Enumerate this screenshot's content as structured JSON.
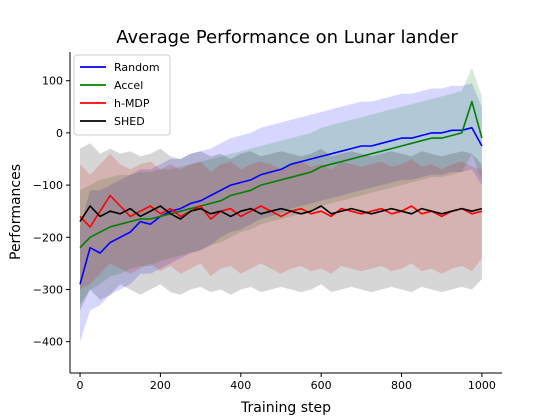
{
  "chart_data": {
    "type": "line",
    "title": "Average Performance on Lunar lander",
    "xlabel": "Training step",
    "ylabel": "Performances",
    "xlim": [
      -25,
      1050
    ],
    "ylim": [
      -460,
      155
    ],
    "xticks": [
      0,
      200,
      400,
      600,
      800,
      1000
    ],
    "yticks": [
      -400,
      -300,
      -200,
      -100,
      0,
      100
    ],
    "xtick_labels": [
      "0",
      "200",
      "400",
      "600",
      "800",
      "1000"
    ],
    "ytick_labels": [
      "−400",
      "−300",
      "−200",
      "−100",
      "0",
      "100"
    ],
    "grid": false,
    "legend_position": "top-left",
    "series": [
      {
        "name": "Random",
        "color": "#0000ff",
        "x": [
          0,
          25,
          50,
          75,
          100,
          125,
          150,
          175,
          200,
          225,
          250,
          275,
          300,
          325,
          350,
          375,
          400,
          425,
          450,
          475,
          500,
          525,
          550,
          575,
          600,
          625,
          650,
          675,
          700,
          725,
          750,
          775,
          800,
          825,
          850,
          875,
          900,
          925,
          950,
          975,
          1000
        ],
        "values": [
          -290,
          -220,
          -230,
          -210,
          -200,
          -190,
          -170,
          -175,
          -160,
          -150,
          -145,
          -135,
          -130,
          -120,
          -110,
          -100,
          -95,
          -90,
          -80,
          -75,
          -70,
          -60,
          -55,
          -50,
          -45,
          -40,
          -35,
          -30,
          -25,
          -25,
          -20,
          -15,
          -10,
          -10,
          -5,
          0,
          0,
          5,
          5,
          10,
          -25
        ],
        "band_low": [
          -400,
          -340,
          -330,
          -310,
          -300,
          -290,
          -270,
          -270,
          -260,
          -250,
          -240,
          -230,
          -225,
          -215,
          -200,
          -190,
          -185,
          -175,
          -165,
          -160,
          -155,
          -145,
          -140,
          -135,
          -130,
          -125,
          -120,
          -115,
          -110,
          -105,
          -100,
          -95,
          -90,
          -90,
          -85,
          -80,
          -80,
          -75,
          -75,
          -70,
          -100
        ],
        "band_high": [
          -180,
          -110,
          -110,
          -100,
          -90,
          -80,
          -70,
          -70,
          -60,
          -50,
          -50,
          -40,
          -35,
          -30,
          -20,
          -10,
          -5,
          0,
          10,
          15,
          20,
          25,
          30,
          35,
          40,
          45,
          50,
          55,
          60,
          60,
          65,
          70,
          75,
          75,
          80,
          85,
          85,
          90,
          90,
          95,
          50
        ]
      },
      {
        "name": "Accel",
        "color": "#008000",
        "x": [
          0,
          25,
          50,
          75,
          100,
          125,
          150,
          175,
          200,
          225,
          250,
          275,
          300,
          325,
          350,
          375,
          400,
          425,
          450,
          475,
          500,
          525,
          550,
          575,
          600,
          625,
          650,
          675,
          700,
          725,
          750,
          775,
          800,
          825,
          850,
          875,
          900,
          925,
          950,
          975,
          1000
        ],
        "values": [
          -220,
          -200,
          -190,
          -180,
          -175,
          -170,
          -165,
          -165,
          -160,
          -155,
          -150,
          -145,
          -140,
          -135,
          -130,
          -120,
          -115,
          -110,
          -100,
          -95,
          -90,
          -85,
          -80,
          -75,
          -65,
          -60,
          -55,
          -50,
          -45,
          -40,
          -35,
          -30,
          -25,
          -20,
          -15,
          -10,
          -10,
          -5,
          0,
          60,
          -10
        ],
        "band_low": [
          -330,
          -300,
          -290,
          -275,
          -270,
          -260,
          -255,
          -255,
          -245,
          -240,
          -235,
          -230,
          -225,
          -215,
          -210,
          -200,
          -190,
          -185,
          -175,
          -170,
          -165,
          -160,
          -155,
          -150,
          -140,
          -135,
          -130,
          -125,
          -120,
          -115,
          -110,
          -105,
          -100,
          -95,
          -90,
          -85,
          -85,
          -80,
          -75,
          -40,
          -90
        ],
        "band_high": [
          -110,
          -100,
          -90,
          -85,
          -80,
          -80,
          -75,
          -75,
          -70,
          -70,
          -65,
          -60,
          -55,
          -50,
          -45,
          -40,
          -35,
          -30,
          -25,
          -20,
          -15,
          -10,
          -5,
          0,
          10,
          15,
          20,
          25,
          30,
          35,
          40,
          45,
          50,
          55,
          60,
          65,
          70,
          75,
          80,
          125,
          70
        ]
      },
      {
        "name": "h-MDP",
        "color": "#ff0000",
        "x": [
          0,
          25,
          50,
          75,
          100,
          125,
          150,
          175,
          200,
          225,
          250,
          275,
          300,
          325,
          350,
          375,
          400,
          425,
          450,
          475,
          500,
          525,
          550,
          575,
          600,
          625,
          650,
          675,
          700,
          725,
          750,
          775,
          800,
          825,
          850,
          875,
          900,
          925,
          950,
          975,
          1000
        ],
        "values": [
          -160,
          -180,
          -150,
          -120,
          -140,
          -160,
          -150,
          -140,
          -155,
          -145,
          -160,
          -150,
          -140,
          -165,
          -150,
          -145,
          -160,
          -150,
          -140,
          -150,
          -160,
          -150,
          -145,
          -155,
          -150,
          -160,
          -145,
          -150,
          -155,
          -150,
          -145,
          -155,
          -150,
          -140,
          -155,
          -150,
          -160,
          -150,
          -145,
          -155,
          -150
        ],
        "band_low": [
          -300,
          -290,
          -270,
          -250,
          -260,
          -270,
          -260,
          -250,
          -265,
          -255,
          -270,
          -260,
          -250,
          -275,
          -260,
          -255,
          -270,
          -260,
          -250,
          -260,
          -270,
          -260,
          -255,
          -265,
          -260,
          -270,
          -255,
          -260,
          -265,
          -260,
          -255,
          -265,
          -260,
          -250,
          -265,
          -260,
          -270,
          -260,
          -255,
          -265,
          -240
        ],
        "band_high": [
          -60,
          -80,
          -60,
          -40,
          -60,
          -70,
          -60,
          -55,
          -70,
          -60,
          -70,
          -60,
          -55,
          -75,
          -60,
          -55,
          -70,
          -60,
          -55,
          -60,
          -70,
          -60,
          -55,
          -65,
          -60,
          -70,
          -55,
          -60,
          -65,
          -60,
          -55,
          -65,
          -60,
          -50,
          -65,
          -60,
          -70,
          -60,
          -55,
          -65,
          -70
        ]
      },
      {
        "name": "SHED",
        "color": "#000000",
        "x": [
          0,
          25,
          50,
          75,
          100,
          125,
          150,
          175,
          200,
          225,
          250,
          275,
          300,
          325,
          350,
          375,
          400,
          425,
          450,
          475,
          500,
          525,
          550,
          575,
          600,
          625,
          650,
          675,
          700,
          725,
          750,
          775,
          800,
          825,
          850,
          875,
          900,
          925,
          950,
          975,
          1000
        ],
        "values": [
          -170,
          -140,
          -160,
          -150,
          -155,
          -145,
          -160,
          -150,
          -140,
          -155,
          -165,
          -150,
          -145,
          -155,
          -150,
          -160,
          -150,
          -145,
          -155,
          -150,
          -145,
          -150,
          -155,
          -150,
          -140,
          -155,
          -150,
          -145,
          -150,
          -155,
          -150,
          -145,
          -150,
          -155,
          -145,
          -150,
          -155,
          -150,
          -145,
          -150,
          -145
        ],
        "band_low": [
          -340,
          -300,
          -320,
          -310,
          -290,
          -300,
          -310,
          -300,
          -290,
          -305,
          -310,
          -300,
          -295,
          -305,
          -300,
          -310,
          -300,
          -295,
          -305,
          -300,
          -295,
          -300,
          -305,
          -300,
          -290,
          -305,
          -300,
          -295,
          -300,
          -305,
          -300,
          -295,
          -300,
          -305,
          -295,
          -300,
          -305,
          -300,
          -295,
          -300,
          -280
        ],
        "band_high": [
          -30,
          -20,
          -40,
          -30,
          -40,
          -35,
          -45,
          -40,
          -30,
          -45,
          -50,
          -40,
          -35,
          -45,
          -40,
          -50,
          -40,
          -35,
          -45,
          -40,
          -35,
          -40,
          -45,
          -40,
          -30,
          -45,
          -40,
          -35,
          -40,
          -45,
          -40,
          -35,
          -40,
          -45,
          -35,
          -40,
          -45,
          -40,
          -35,
          -40,
          -60
        ]
      }
    ]
  }
}
